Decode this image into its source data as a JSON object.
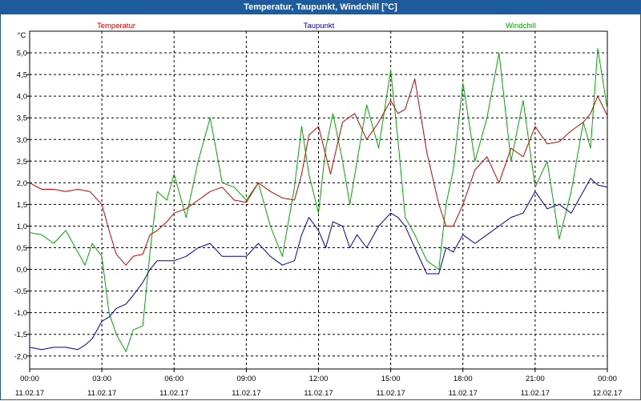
{
  "window": {
    "title": "Temperatur, Taupunkt, Windchill [°C]"
  },
  "chart_data": {
    "type": "line",
    "title": "Temperatur, Taupunkt, Windchill [°C]",
    "ylabel": "°C",
    "xlabel": "",
    "ylim": [
      -2.3,
      5.5
    ],
    "y_ticks": [
      "-2,0",
      "-1,5",
      "-1,0",
      "-0,5",
      "0,0",
      "0,5",
      "1,0",
      "1,5",
      "2,0",
      "2,5",
      "3,0",
      "3,5",
      "4,0",
      "4,5",
      "5,0"
    ],
    "y_tick_values": [
      -2.0,
      -1.5,
      -1.0,
      -0.5,
      0.0,
      0.5,
      1.0,
      1.5,
      2.0,
      2.5,
      3.0,
      3.5,
      4.0,
      4.5,
      5.0
    ],
    "x_range": [
      0,
      24
    ],
    "x_tick_values": [
      0,
      3,
      6,
      9,
      12,
      15,
      18,
      21,
      24
    ],
    "x_ticks": [
      {
        "time": "00:00",
        "date": "11.02.17"
      },
      {
        "time": "03:00",
        "date": "11.02.17"
      },
      {
        "time": "06:00",
        "date": "11.02.17"
      },
      {
        "time": "09:00",
        "date": "11.02.17"
      },
      {
        "time": "12:00",
        "date": "11.02.17"
      },
      {
        "time": "15:00",
        "date": "11.02.17"
      },
      {
        "time": "18:00",
        "date": "11.02.17"
      },
      {
        "time": "21:00",
        "date": "11.02.17"
      },
      {
        "time": "00:00",
        "date": "12.02.17"
      }
    ],
    "grid": true,
    "series": [
      {
        "name": "Temperatur",
        "color": "#cc0000",
        "x": [
          0,
          0.5,
          1,
          1.5,
          2,
          2.5,
          3,
          3.3,
          3.6,
          4,
          4.3,
          4.7,
          5,
          5.3,
          5.7,
          6,
          6.5,
          7,
          7.5,
          8,
          8.5,
          9,
          9.5,
          10,
          10.5,
          11,
          11.3,
          11.6,
          12,
          12.5,
          13,
          13.5,
          14,
          14.5,
          15,
          15.3,
          15.6,
          16,
          16.5,
          17,
          17.3,
          17.6,
          18,
          18.5,
          19,
          19.5,
          20,
          20.5,
          21,
          21.5,
          22,
          22.5,
          23,
          23.3,
          23.6,
          24
        ],
        "values": [
          2.0,
          1.85,
          1.85,
          1.8,
          1.85,
          1.8,
          1.5,
          0.9,
          0.35,
          0.1,
          0.3,
          0.35,
          0.8,
          0.9,
          1.1,
          1.3,
          1.4,
          1.6,
          1.8,
          1.9,
          1.6,
          1.55,
          2.0,
          1.8,
          1.65,
          1.6,
          2.2,
          3.1,
          3.3,
          2.2,
          3.4,
          3.6,
          3.0,
          3.4,
          3.9,
          3.6,
          3.7,
          4.4,
          2.7,
          1.5,
          1.0,
          1.0,
          1.5,
          2.3,
          2.6,
          2.0,
          2.8,
          2.6,
          3.3,
          2.9,
          2.95,
          3.2,
          3.4,
          3.6,
          4.0,
          3.55
        ]
      },
      {
        "name": "Taupunkt",
        "color": "#0000aa",
        "x": [
          0,
          0.5,
          1,
          1.5,
          2,
          2.3,
          2.6,
          3,
          3.3,
          3.6,
          4,
          4.3,
          4.7,
          5,
          5.3,
          5.7,
          6,
          6.5,
          7,
          7.5,
          8,
          8.5,
          9,
          9.5,
          10,
          10.5,
          11,
          11.3,
          11.6,
          12,
          12.3,
          12.6,
          13,
          13.3,
          13.6,
          14,
          14.5,
          15,
          15.3,
          15.6,
          16,
          16.5,
          17,
          17.3,
          17.6,
          18,
          18.5,
          19,
          19.5,
          20,
          20.5,
          21,
          21.5,
          22,
          22.5,
          23,
          23.3,
          23.6,
          24
        ],
        "values": [
          -1.8,
          -1.85,
          -1.8,
          -1.8,
          -1.85,
          -1.75,
          -1.6,
          -1.2,
          -1.1,
          -0.9,
          -0.8,
          -0.6,
          -0.3,
          0.0,
          0.2,
          0.2,
          0.2,
          0.3,
          0.5,
          0.6,
          0.3,
          0.3,
          0.3,
          0.6,
          0.3,
          0.1,
          0.2,
          0.8,
          1.2,
          0.9,
          0.5,
          1.1,
          1.0,
          0.5,
          0.8,
          0.5,
          1.0,
          1.3,
          1.2,
          1.0,
          0.5,
          -0.1,
          -0.1,
          0.5,
          0.4,
          0.8,
          0.6,
          0.8,
          1.0,
          1.2,
          1.3,
          1.8,
          1.4,
          1.5,
          1.3,
          1.8,
          2.1,
          1.95,
          1.9
        ]
      },
      {
        "name": "Windchill",
        "color": "#00aa00",
        "x": [
          0,
          0.5,
          1,
          1.5,
          2,
          2.3,
          2.6,
          3,
          3.3,
          3.6,
          4,
          4.3,
          4.7,
          5,
          5.3,
          5.7,
          6,
          6.5,
          7,
          7.5,
          8,
          8.5,
          9,
          9.5,
          10,
          10.5,
          11,
          11.3,
          11.6,
          12,
          12.3,
          12.6,
          13,
          13.3,
          13.6,
          14,
          14.5,
          15,
          15.3,
          15.6,
          16,
          16.5,
          17,
          17.3,
          17.6,
          18,
          18.5,
          19,
          19.5,
          20,
          20.5,
          21,
          21.5,
          22,
          22.5,
          23,
          23.3,
          23.6,
          24
        ],
        "values": [
          0.85,
          0.8,
          0.6,
          0.9,
          0.4,
          0.1,
          0.6,
          0.3,
          -1.0,
          -1.5,
          -1.9,
          -1.4,
          -1.3,
          0.4,
          1.8,
          1.6,
          2.2,
          1.2,
          2.5,
          3.5,
          2.0,
          1.9,
          1.6,
          2.0,
          1.0,
          0.3,
          1.9,
          3.3,
          2.2,
          1.3,
          2.8,
          3.6,
          2.5,
          1.5,
          2.5,
          3.8,
          2.8,
          4.6,
          3.0,
          1.2,
          0.8,
          0.2,
          0.0,
          1.5,
          2.3,
          4.3,
          2.5,
          3.5,
          5.0,
          2.5,
          3.9,
          1.9,
          2.5,
          0.7,
          1.8,
          3.4,
          2.8,
          5.1,
          3.7
        ]
      }
    ]
  }
}
